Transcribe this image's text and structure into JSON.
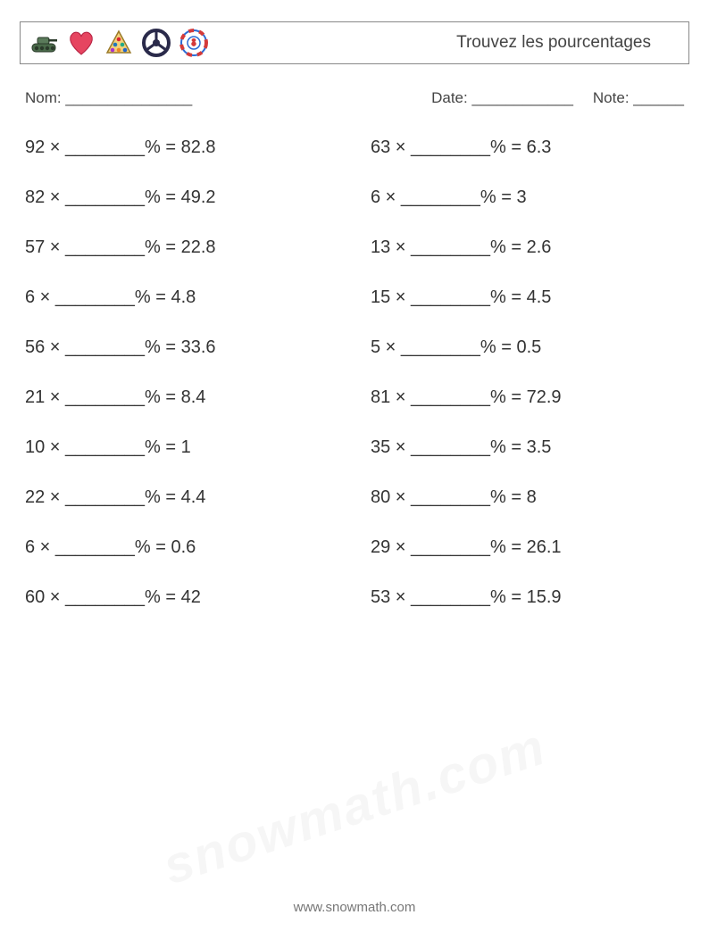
{
  "header": {
    "title": "Trouvez les pourcentages",
    "icons": [
      "tank-icon",
      "heart-icon",
      "billiards-icon",
      "steering-wheel-icon",
      "poker-chip-icon"
    ]
  },
  "meta": {
    "name_label": "Nom: _______________",
    "date_label": "Date: ____________",
    "note_label": "Note: ______"
  },
  "problems": {
    "blank": "________",
    "left": [
      {
        "a": "92",
        "r": "82.8"
      },
      {
        "a": "82",
        "r": "49.2"
      },
      {
        "a": "57",
        "r": "22.8"
      },
      {
        "a": "6",
        "r": "4.8"
      },
      {
        "a": "56",
        "r": "33.6"
      },
      {
        "a": "21",
        "r": "8.4"
      },
      {
        "a": "10",
        "r": "1"
      },
      {
        "a": "22",
        "r": "4.4"
      },
      {
        "a": "6",
        "r": "0.6"
      },
      {
        "a": "60",
        "r": "42"
      }
    ],
    "right": [
      {
        "a": "63",
        "r": "6.3"
      },
      {
        "a": "6",
        "r": "3"
      },
      {
        "a": "13",
        "r": "2.6"
      },
      {
        "a": "15",
        "r": "4.5"
      },
      {
        "a": "5",
        "r": "0.5"
      },
      {
        "a": "81",
        "r": "72.9"
      },
      {
        "a": "35",
        "r": "3.5"
      },
      {
        "a": "80",
        "r": "8"
      },
      {
        "a": "29",
        "r": "26.1"
      },
      {
        "a": "53",
        "r": "15.9"
      }
    ]
  },
  "footer": {
    "url": "www.snowmath.com",
    "watermark": "snowmath.com"
  },
  "colors": {
    "text": "#333333",
    "border": "#888888",
    "background": "#ffffff",
    "footer": "#777777"
  },
  "type": "document"
}
